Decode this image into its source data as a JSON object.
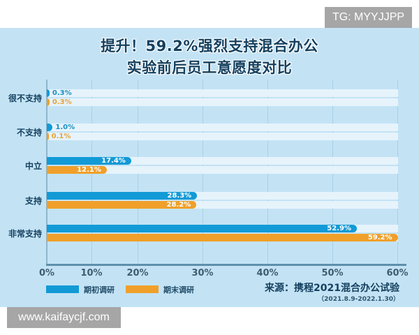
{
  "watermarks": {
    "top_right": "TG: MYYJJPP",
    "bottom_left": "www.kaifaycjf.com"
  },
  "colors": {
    "panel_bg": "#c3e3f5",
    "initial_survey": "#129ad6",
    "final_survey": "#f0a02a",
    "track": "#e6f3fb",
    "title": "#15405f"
  },
  "chart_data": {
    "type": "bar",
    "orientation": "horizontal",
    "title": "提升！59.2%强烈支持混合办公",
    "subtitle": "实验前后员工意愿度对比",
    "categories": [
      "很不支持",
      "不支持",
      "中立",
      "支持",
      "非常支持"
    ],
    "series": [
      {
        "name": "期初调研",
        "color": "#129ad6",
        "values": [
          0.3,
          1.0,
          17.4,
          28.3,
          52.9
        ],
        "labels": [
          "0.3%",
          "1.0%",
          "17.4%",
          "28.3%",
          "52.9%"
        ]
      },
      {
        "name": "期末调研",
        "color": "#f0a02a",
        "values": [
          0.3,
          0.1,
          12.1,
          28.2,
          59.2
        ],
        "labels": [
          "0.3%",
          "0.1%",
          "12.1%",
          "28.2%",
          "59.2%"
        ]
      }
    ],
    "xlabel": "",
    "ylabel": "",
    "xlim": [
      0,
      60
    ],
    "xticks": [
      "0%",
      "10%",
      "20%",
      "30%",
      "40%",
      "50%",
      "60%"
    ],
    "grid": true,
    "legend_position": "bottom-left",
    "source": "来源：携程2021混合办公试验",
    "source_date": "（2021.8.9-2022.1.30）"
  },
  "legend": {
    "items": [
      {
        "label": "期初调研"
      },
      {
        "label": "期末调研"
      }
    ]
  }
}
